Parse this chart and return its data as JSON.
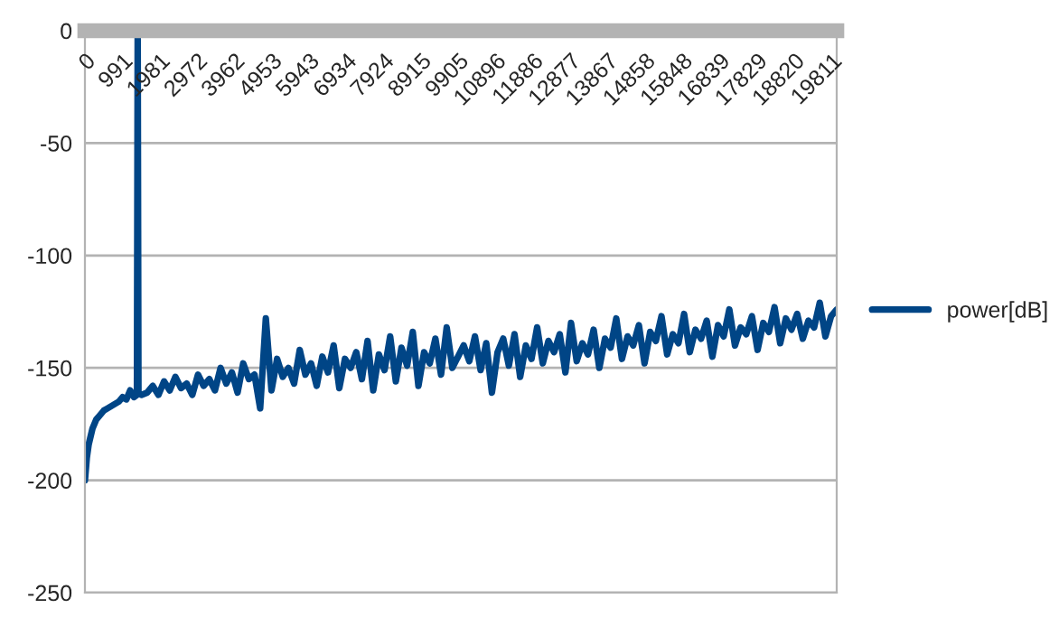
{
  "chart_data": {
    "type": "line",
    "x": [
      0,
      50,
      100,
      200,
      300,
      400,
      500,
      600,
      700,
      800,
      900,
      1000,
      1100,
      1200,
      1300,
      1380,
      1400,
      1420,
      1500,
      1650,
      1800,
      1950,
      2100,
      2250,
      2400,
      2550,
      2700,
      2850,
      3000,
      3150,
      3300,
      3450,
      3600,
      3750,
      3900,
      4050,
      4200,
      4350,
      4500,
      4650,
      4800,
      4950,
      5100,
      5250,
      5400,
      5550,
      5700,
      5850,
      6000,
      6150,
      6300,
      6450,
      6600,
      6750,
      6900,
      7050,
      7200,
      7350,
      7500,
      7650,
      7800,
      7950,
      8100,
      8250,
      8400,
      8550,
      8700,
      8850,
      9000,
      9150,
      9300,
      9450,
      9600,
      9750,
      9900,
      10050,
      10200,
      10350,
      10500,
      10650,
      10800,
      10950,
      11100,
      11250,
      11400,
      11550,
      11700,
      11850,
      12000,
      12150,
      12300,
      12450,
      12600,
      12750,
      12900,
      13050,
      13200,
      13350,
      13500,
      13650,
      13800,
      13950,
      14100,
      14250,
      14400,
      14550,
      14700,
      14850,
      15000,
      15150,
      15300,
      15450,
      15600,
      15750,
      15900,
      16050,
      16200,
      16350,
      16500,
      16650,
      16800,
      16950,
      17100,
      17250,
      17400,
      17550,
      17700,
      17850,
      18000,
      18150,
      18300,
      18450,
      18600,
      18750,
      18900,
      19050,
      19200,
      19350,
      19500,
      19650,
      19800,
      19950
    ],
    "series": [
      {
        "name": "power[dB]",
        "color": "#004586",
        "values": [
          -200,
          -190,
          -184,
          -177,
          -173,
          -171,
          -169,
          -168,
          -167,
          -166,
          -165,
          -163,
          -164,
          -160,
          -163,
          -162,
          0,
          -161,
          -162,
          -161,
          -158,
          -162,
          -156,
          -160,
          -154,
          -159,
          -157,
          -162,
          -153,
          -158,
          -155,
          -160,
          -150,
          -157,
          -152,
          -161,
          -148,
          -155,
          -153,
          -168,
          -128,
          -160,
          -146,
          -154,
          -150,
          -157,
          -142,
          -153,
          -148,
          -158,
          -145,
          -152,
          -140,
          -159,
          -146,
          -150,
          -143,
          -155,
          -138,
          -160,
          -144,
          -151,
          -136,
          -156,
          -141,
          -149,
          -134,
          -158,
          -143,
          -148,
          -137,
          -153,
          -132,
          -150,
          -145,
          -140,
          -147,
          -136,
          -151,
          -139,
          -161,
          -143,
          -137,
          -149,
          -135,
          -154,
          -140,
          -146,
          -132,
          -148,
          -138,
          -143,
          -135,
          -152,
          -130,
          -147,
          -139,
          -144,
          -133,
          -150,
          -137,
          -141,
          -128,
          -146,
          -136,
          -140,
          -131,
          -148,
          -134,
          -138,
          -127,
          -144,
          -135,
          -139,
          -126,
          -143,
          -133,
          -137,
          -129,
          -145,
          -131,
          -136,
          -124,
          -140,
          -132,
          -135,
          -127,
          -142,
          -130,
          -134,
          -123,
          -139,
          -128,
          -133,
          -126,
          -137,
          -129,
          -132,
          -121,
          -136,
          -127,
          -124
        ]
      }
    ],
    "xlim": [
      0,
      19950
    ],
    "xticks": [
      0,
      991,
      1981,
      2972,
      3962,
      4953,
      5943,
      6934,
      7924,
      8915,
      9905,
      10896,
      11886,
      12877,
      13867,
      14858,
      15848,
      16839,
      17829,
      18820,
      19811
    ],
    "ylim": [
      -250,
      0
    ],
    "yticks": [
      -250,
      -200,
      -150,
      -100,
      -50,
      0
    ],
    "grid": "y",
    "legend": "right",
    "marker": "none",
    "line_style": "solid"
  }
}
